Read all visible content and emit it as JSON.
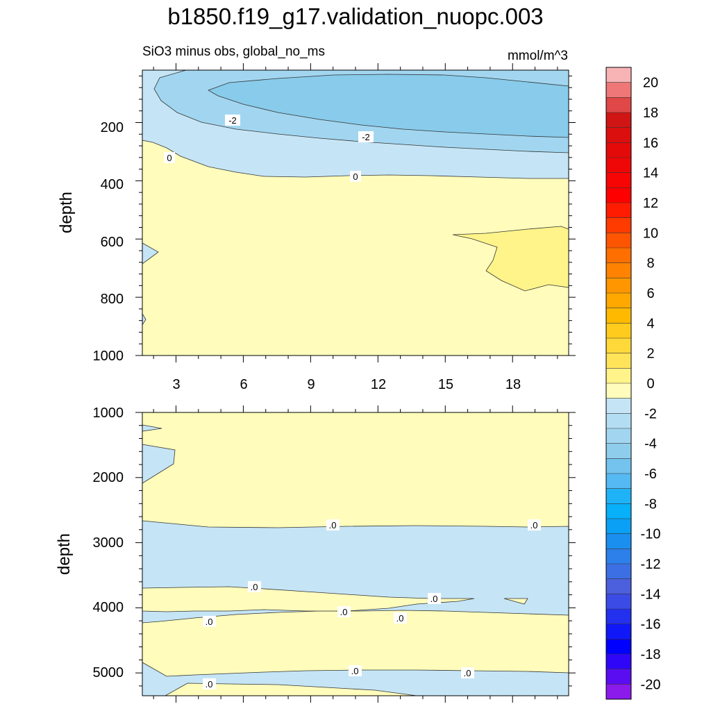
{
  "title": "b1850.f19_g17.validation_nuopc.003",
  "panels": {
    "top": {
      "subtitle_left": "SiO3 minus obs, global_no_ms",
      "subtitle_right": "mmol/m^3",
      "ylabel": "depth"
    },
    "bottom": {
      "ylabel": "depth"
    }
  },
  "colors": {
    "pos_0_2": "#fffcbc",
    "pos_2_4": "#fff48a",
    "neg_0_m2": "#c5e5f6",
    "neg_m2_m4": "#a2d6f0",
    "neg_m4_m6": "#88cbeb",
    "contour_line": "#333333"
  },
  "chart_data": [
    {
      "type": "heatmap",
      "title": "SiO3 minus obs, global_no_ms",
      "units": "mmol/m^3",
      "xlabel": "",
      "ylabel": "depth",
      "xlim": [
        1.5,
        20.5
      ],
      "ylim": [
        1000,
        20
      ],
      "xticks": [
        3,
        6,
        9,
        12,
        15,
        18
      ],
      "yticks": [
        200,
        400,
        600,
        800,
        1000
      ],
      "contour_labels": [
        "-2",
        "-2",
        "0",
        "0"
      ],
      "fields": [
        {
          "range": "-6 to -4",
          "x": [
            4.5,
            20.5
          ],
          "depth": [
            40,
            150
          ],
          "note": "core of negative anomaly"
        },
        {
          "range": "-4 to -2",
          "x": [
            1.8,
            20.5
          ],
          "depth": [
            20,
            230
          ]
        },
        {
          "range": "-2 to 0",
          "x": [
            1.5,
            20.5
          ],
          "depth": [
            20,
            380
          ]
        },
        {
          "range": "0 to 2",
          "x": [
            1.5,
            20.5
          ],
          "depth": [
            250,
            1000
          ]
        },
        {
          "range": "2 to 4",
          "x": [
            16.0,
            20.5
          ],
          "depth": [
            560,
            770
          ]
        }
      ]
    },
    {
      "type": "heatmap",
      "xlabel": "",
      "ylabel": "depth",
      "xlim": [
        1.5,
        20.5
      ],
      "ylim": [
        5350,
        1000
      ],
      "xticks": [
        3,
        6,
        9,
        12,
        15,
        18
      ],
      "yticks": [
        1000,
        2000,
        3000,
        4000,
        5000
      ],
      "contour_labels": [
        ".0",
        ".0",
        ".0",
        ".0",
        ".0",
        ".0",
        ".0",
        ".0",
        ".0",
        ".0"
      ],
      "fields": [
        {
          "range": "0 to 2",
          "x": [
            1.5,
            20.5
          ],
          "depth": [
            1000,
            2700
          ]
        },
        {
          "range": "-2 to 0",
          "x": [
            1.5,
            20.5
          ],
          "depth": [
            2700,
            3700
          ]
        },
        {
          "range": "0 to 2",
          "x": [
            1.5,
            16.5
          ],
          "depth": [
            3700,
            4060
          ]
        },
        {
          "range": "-2 to 0",
          "x": [
            1.5,
            20.5
          ],
          "depth": [
            3900,
            4230
          ]
        },
        {
          "range": "0 to 2",
          "x": [
            1.5,
            20.5
          ],
          "depth": [
            4130,
            4950
          ]
        },
        {
          "range": "-2 to 0",
          "x": [
            1.5,
            20.5
          ],
          "depth": [
            4850,
            5300
          ]
        },
        {
          "range": "0 to 2",
          "x": [
            4.5,
            14.5
          ],
          "depth": [
            5200,
            5350
          ]
        }
      ]
    }
  ],
  "colorbar": {
    "labels": [
      "20",
      "18",
      "16",
      "14",
      "12",
      "10",
      "8",
      "6",
      "4",
      "2",
      "0",
      "-2",
      "-4",
      "-6",
      "-8",
      "-10",
      "-12",
      "-14",
      "-16",
      "-18",
      "-20"
    ],
    "colors": [
      "#f8b3b5",
      "#ef7777",
      "#e04747",
      "#d01515",
      "#dc0f0f",
      "#e40a0a",
      "#ef0707",
      "#f70404",
      "#ff0000",
      "#ff1c00",
      "#ff3b00",
      "#ff5500",
      "#ff6f00",
      "#ff8300",
      "#ff9600",
      "#ffa800",
      "#ffba00",
      "#ffcb1c",
      "#ffd93a",
      "#ffe45a",
      "#fff38a",
      "#fffcbc",
      "#c5e5f6",
      "#b3ddf3",
      "#a2d6f0",
      "#8fcdec",
      "#73c3ee",
      "#55b9f4",
      "#1eb3f7",
      "#07b0f8",
      "#0aa0f5",
      "#1b8ff0",
      "#2d7fea",
      "#3d6fe4",
      "#4c5fdc",
      "#3b4ce6",
      "#2330ee",
      "#1018f7",
      "#0000ff",
      "#3006f8",
      "#5a0df1",
      "#8a1bea"
    ]
  }
}
